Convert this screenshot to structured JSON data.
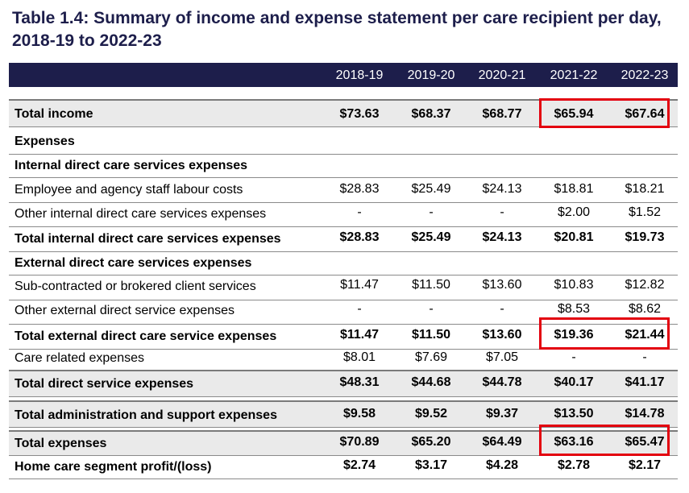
{
  "title": "Table 1.4: Summary of income and expense statement per care recipient per day, 2018-19 to 2022-23",
  "years": [
    "2018-19",
    "2019-20",
    "2020-21",
    "2021-22",
    "2022-23"
  ],
  "rows": [
    {
      "label": "Total income",
      "values": [
        "$73.63",
        "$68.37",
        "$68.77",
        "$65.94",
        "$67.64"
      ]
    },
    {
      "label": "Expenses"
    },
    {
      "label": "Internal direct care services expenses"
    },
    {
      "label": "Employee and agency staff labour costs",
      "values": [
        "$28.83",
        "$25.49",
        "$24.13",
        "$18.81",
        "$18.21"
      ]
    },
    {
      "label": "Other internal direct care services expenses",
      "values": [
        "-",
        "-",
        "-",
        "$2.00",
        "$1.52"
      ]
    },
    {
      "label": "Total internal direct care services expenses",
      "values": [
        "$28.83",
        "$25.49",
        "$24.13",
        "$20.81",
        "$19.73"
      ]
    },
    {
      "label": "External direct care services expenses"
    },
    {
      "label": "Sub-contracted or brokered client services",
      "values": [
        "$11.47",
        "$11.50",
        "$13.60",
        "$10.83",
        "$12.82"
      ]
    },
    {
      "label": "Other external direct service expenses",
      "values": [
        "-",
        "-",
        "-",
        "$8.53",
        "$8.62"
      ]
    },
    {
      "label": "Total external direct care service expenses",
      "values": [
        "$11.47",
        "$11.50",
        "$13.60",
        "$19.36",
        "$21.44"
      ]
    },
    {
      "label": "Care related expenses",
      "values": [
        "$8.01",
        "$7.69",
        "$7.05",
        "-",
        "-"
      ]
    },
    {
      "label": "Total direct service expenses",
      "values": [
        "$48.31",
        "$44.68",
        "$44.78",
        "$40.17",
        "$41.17"
      ]
    },
    {
      "label": "Total administration and support expenses",
      "values": [
        "$9.58",
        "$9.52",
        "$9.37",
        "$13.50",
        "$14.78"
      ]
    },
    {
      "label": "Total expenses",
      "values": [
        "$70.89",
        "$65.20",
        "$64.49",
        "$63.16",
        "$65.47"
      ]
    },
    {
      "label": "Home care segment profit/(loss)",
      "values": [
        "$2.74",
        "$3.17",
        "$4.28",
        "$2.78",
        "$2.17"
      ]
    }
  ]
}
